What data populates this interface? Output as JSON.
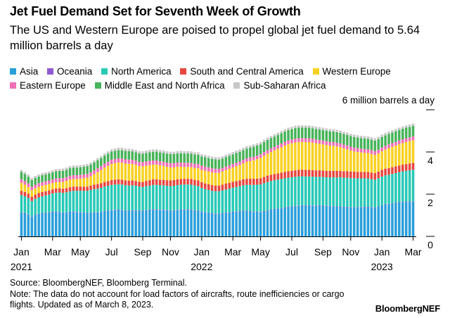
{
  "header": {
    "title": "Jet Fuel Demand Set for Seventh Week of Growth",
    "subtitle": "The US and Western Europe are poised to propel global jet fuel demand to 5.64 million barrels a day"
  },
  "footer": {
    "source": "Source: BloombergNEF, Bloomberg Terminal.",
    "note": "Note: The data do not account for load factors of aircrafts, route inefficiencies or cargo flights. Updated as of March 8, 2023.",
    "brand": "BloombergNEF"
  },
  "colors": {
    "asia": "#2a9fdb",
    "oceania": "#8e5ad4",
    "north_america": "#27c9b5",
    "south_central_america": "#e8473f",
    "western_europe": "#f8d124",
    "eastern_europe": "#ee6fb4",
    "middle_east_north_africa": "#48b35a",
    "sub_saharan_africa": "#c8c8c8"
  },
  "chart_data": {
    "type": "bar",
    "stacked": true,
    "y_unit_label": "6 million barrels a day",
    "ylim": [
      0,
      6
    ],
    "yticks": [
      0,
      2,
      4,
      6
    ],
    "y_tick_labels": [
      "0",
      "2",
      "4",
      ""
    ],
    "y_axis_side": "right",
    "grid": false,
    "legend_position": "top",
    "x_tick_labels": [
      {
        "label": "Jan",
        "year": "2021",
        "week": 0
      },
      {
        "label": "Mar",
        "week": 9
      },
      {
        "label": "May",
        "week": 17
      },
      {
        "label": "Jul",
        "week": 26
      },
      {
        "label": "Sep",
        "week": 35
      },
      {
        "label": "Nov",
        "week": 43
      },
      {
        "label": "Jan",
        "year": "2022",
        "week": 52
      },
      {
        "label": "Mar",
        "week": 61
      },
      {
        "label": "May",
        "week": 69
      },
      {
        "label": "Jul",
        "week": 78
      },
      {
        "label": "Sep",
        "week": 87
      },
      {
        "label": "Nov",
        "week": 95
      },
      {
        "label": "Jan",
        "year": "2023",
        "week": 104
      },
      {
        "label": "Mar",
        "week": 113
      }
    ],
    "x": [
      "2021-01-01",
      "2021-01-08",
      "2021-01-15",
      "2021-01-22",
      "2021-01-29",
      "2021-02-05",
      "2021-02-12",
      "2021-02-19",
      "2021-02-26",
      "2021-03-05",
      "2021-03-12",
      "2021-03-19",
      "2021-03-26",
      "2021-04-02",
      "2021-04-09",
      "2021-04-16",
      "2021-04-23",
      "2021-04-30",
      "2021-05-07",
      "2021-05-14",
      "2021-05-21",
      "2021-05-28",
      "2021-06-04",
      "2021-06-11",
      "2021-06-18",
      "2021-06-25",
      "2021-07-02",
      "2021-07-09",
      "2021-07-16",
      "2021-07-23",
      "2021-07-30",
      "2021-08-06",
      "2021-08-13",
      "2021-08-20",
      "2021-08-27",
      "2021-09-03",
      "2021-09-10",
      "2021-09-17",
      "2021-09-24",
      "2021-10-01",
      "2021-10-08",
      "2021-10-15",
      "2021-10-22",
      "2021-10-29",
      "2021-11-05",
      "2021-11-12",
      "2021-11-19",
      "2021-11-26",
      "2021-12-03",
      "2021-12-10",
      "2021-12-17",
      "2021-12-24",
      "2021-12-31",
      "2022-01-07",
      "2022-01-14",
      "2022-01-21",
      "2022-01-28",
      "2022-02-04",
      "2022-02-11",
      "2022-02-18",
      "2022-02-25",
      "2022-03-04",
      "2022-03-11",
      "2022-03-18",
      "2022-03-25",
      "2022-04-01",
      "2022-04-08",
      "2022-04-15",
      "2022-04-22",
      "2022-04-29",
      "2022-05-06",
      "2022-05-13",
      "2022-05-20",
      "2022-05-27",
      "2022-06-03",
      "2022-06-10",
      "2022-06-17",
      "2022-06-24",
      "2022-07-01",
      "2022-07-08",
      "2022-07-15",
      "2022-07-22",
      "2022-07-29",
      "2022-08-05",
      "2022-08-12",
      "2022-08-19",
      "2022-08-26",
      "2022-09-02",
      "2022-09-09",
      "2022-09-16",
      "2022-09-23",
      "2022-09-30",
      "2022-10-07",
      "2022-10-14",
      "2022-10-21",
      "2022-10-28",
      "2022-11-04",
      "2022-11-11",
      "2022-11-18",
      "2022-11-25",
      "2022-12-02",
      "2022-12-09",
      "2022-12-16",
      "2022-12-23",
      "2022-12-30",
      "2023-01-06",
      "2023-01-13",
      "2023-01-20",
      "2023-01-27",
      "2023-02-03",
      "2023-02-10",
      "2023-02-17",
      "2023-02-24",
      "2023-03-03"
    ],
    "series": [
      {
        "name": "Asia",
        "color_key": "asia",
        "values": [
          1.12,
          1.08,
          1.02,
          0.92,
          1.0,
          1.05,
          1.08,
          1.1,
          1.12,
          1.15,
          1.15,
          1.14,
          1.1,
          1.12,
          1.15,
          1.16,
          1.14,
          1.12,
          1.1,
          1.08,
          1.1,
          1.12,
          1.12,
          1.14,
          1.18,
          1.2,
          1.22,
          1.24,
          1.25,
          1.24,
          1.2,
          1.2,
          1.22,
          1.22,
          1.2,
          1.2,
          1.22,
          1.25,
          1.26,
          1.26,
          1.24,
          1.24,
          1.22,
          1.2,
          1.22,
          1.24,
          1.25,
          1.26,
          1.26,
          1.25,
          1.22,
          1.2,
          1.16,
          1.12,
          1.1,
          1.08,
          1.06,
          1.05,
          1.08,
          1.1,
          1.12,
          1.15,
          1.16,
          1.18,
          1.2,
          1.2,
          1.18,
          1.16,
          1.15,
          1.14,
          1.18,
          1.22,
          1.25,
          1.28,
          1.3,
          1.32,
          1.35,
          1.38,
          1.4,
          1.42,
          1.44,
          1.45,
          1.45,
          1.45,
          1.44,
          1.44,
          1.45,
          1.45,
          1.44,
          1.42,
          1.42,
          1.4,
          1.4,
          1.38,
          1.38,
          1.36,
          1.36,
          1.36,
          1.37,
          1.38,
          1.38,
          1.36,
          1.35,
          1.4,
          1.45,
          1.5,
          1.52,
          1.55,
          1.58,
          1.6,
          1.62,
          1.63,
          1.63,
          1.64
        ]
      },
      {
        "name": "Oceania",
        "color_key": "oceania",
        "values": [
          0.02,
          0.02,
          0.02,
          0.02,
          0.02,
          0.02,
          0.02,
          0.02,
          0.02,
          0.02,
          0.02,
          0.02,
          0.02,
          0.02,
          0.02,
          0.02,
          0.02,
          0.02,
          0.02,
          0.02,
          0.02,
          0.02,
          0.02,
          0.02,
          0.02,
          0.02,
          0.02,
          0.02,
          0.02,
          0.02,
          0.02,
          0.02,
          0.02,
          0.02,
          0.02,
          0.02,
          0.02,
          0.02,
          0.02,
          0.02,
          0.02,
          0.02,
          0.02,
          0.02,
          0.02,
          0.02,
          0.02,
          0.02,
          0.02,
          0.02,
          0.02,
          0.02,
          0.02,
          0.02,
          0.02,
          0.02,
          0.02,
          0.02,
          0.02,
          0.02,
          0.02,
          0.02,
          0.02,
          0.02,
          0.02,
          0.02,
          0.02,
          0.02,
          0.02,
          0.02,
          0.02,
          0.02,
          0.02,
          0.02,
          0.02,
          0.02,
          0.02,
          0.02,
          0.02,
          0.02,
          0.02,
          0.02,
          0.02,
          0.02,
          0.02,
          0.02,
          0.02,
          0.02,
          0.02,
          0.02,
          0.02,
          0.02,
          0.02,
          0.02,
          0.02,
          0.02,
          0.02,
          0.02,
          0.02,
          0.02,
          0.02,
          0.02,
          0.02,
          0.02,
          0.02,
          0.02,
          0.02,
          0.02,
          0.02,
          0.02,
          0.02,
          0.02,
          0.02,
          0.02
        ]
      },
      {
        "name": "North America",
        "color_key": "north_america",
        "values": [
          0.82,
          0.8,
          0.78,
          0.74,
          0.76,
          0.78,
          0.8,
          0.82,
          0.84,
          0.86,
          0.9,
          0.92,
          0.94,
          0.95,
          0.96,
          0.98,
          1.0,
          1.02,
          1.04,
          1.06,
          1.08,
          1.1,
          1.12,
          1.14,
          1.16,
          1.18,
          1.2,
          1.2,
          1.2,
          1.2,
          1.2,
          1.19,
          1.18,
          1.16,
          1.14,
          1.12,
          1.14,
          1.14,
          1.16,
          1.16,
          1.16,
          1.16,
          1.16,
          1.16,
          1.16,
          1.17,
          1.18,
          1.18,
          1.18,
          1.18,
          1.17,
          1.16,
          1.12,
          1.1,
          1.08,
          1.06,
          1.06,
          1.07,
          1.08,
          1.1,
          1.12,
          1.14,
          1.16,
          1.18,
          1.2,
          1.22,
          1.24,
          1.26,
          1.28,
          1.3,
          1.32,
          1.34,
          1.35,
          1.36,
          1.37,
          1.38,
          1.38,
          1.38,
          1.38,
          1.38,
          1.38,
          1.38,
          1.37,
          1.37,
          1.37,
          1.36,
          1.35,
          1.34,
          1.34,
          1.35,
          1.36,
          1.37,
          1.38,
          1.38,
          1.38,
          1.38,
          1.38,
          1.37,
          1.36,
          1.35,
          1.34,
          1.33,
          1.32,
          1.34,
          1.36,
          1.37,
          1.38,
          1.39,
          1.4,
          1.42,
          1.44,
          1.46,
          1.48,
          1.5
        ]
      },
      {
        "name": "South and Central America",
        "color_key": "south_central_america",
        "values": [
          0.2,
          0.2,
          0.2,
          0.2,
          0.2,
          0.2,
          0.2,
          0.2,
          0.2,
          0.2,
          0.2,
          0.2,
          0.2,
          0.2,
          0.2,
          0.2,
          0.2,
          0.2,
          0.2,
          0.2,
          0.2,
          0.21,
          0.22,
          0.22,
          0.22,
          0.22,
          0.23,
          0.23,
          0.23,
          0.23,
          0.23,
          0.23,
          0.23,
          0.23,
          0.23,
          0.24,
          0.25,
          0.25,
          0.26,
          0.26,
          0.26,
          0.26,
          0.26,
          0.27,
          0.27,
          0.27,
          0.27,
          0.27,
          0.27,
          0.27,
          0.27,
          0.27,
          0.27,
          0.27,
          0.27,
          0.27,
          0.27,
          0.27,
          0.27,
          0.28,
          0.28,
          0.28,
          0.28,
          0.28,
          0.28,
          0.29,
          0.29,
          0.29,
          0.29,
          0.3,
          0.3,
          0.3,
          0.3,
          0.3,
          0.3,
          0.3,
          0.31,
          0.31,
          0.31,
          0.31,
          0.31,
          0.31,
          0.31,
          0.31,
          0.31,
          0.31,
          0.31,
          0.31,
          0.31,
          0.31,
          0.31,
          0.31,
          0.31,
          0.31,
          0.31,
          0.31,
          0.31,
          0.31,
          0.31,
          0.31,
          0.31,
          0.31,
          0.31,
          0.31,
          0.32,
          0.32,
          0.32,
          0.32,
          0.32,
          0.32,
          0.32,
          0.32,
          0.32,
          0.32
        ]
      },
      {
        "name": "Western Europe",
        "color_key": "western_europe",
        "values": [
          0.38,
          0.35,
          0.32,
          0.3,
          0.3,
          0.3,
          0.3,
          0.3,
          0.3,
          0.3,
          0.3,
          0.3,
          0.32,
          0.34,
          0.36,
          0.36,
          0.36,
          0.38,
          0.4,
          0.42,
          0.45,
          0.5,
          0.56,
          0.62,
          0.68,
          0.72,
          0.76,
          0.78,
          0.8,
          0.8,
          0.8,
          0.8,
          0.78,
          0.76,
          0.74,
          0.74,
          0.72,
          0.72,
          0.7,
          0.7,
          0.68,
          0.66,
          0.64,
          0.62,
          0.6,
          0.6,
          0.58,
          0.56,
          0.56,
          0.56,
          0.56,
          0.58,
          0.58,
          0.6,
          0.6,
          0.6,
          0.6,
          0.6,
          0.62,
          0.64,
          0.66,
          0.68,
          0.7,
          0.72,
          0.76,
          0.8,
          0.84,
          0.88,
          0.92,
          0.96,
          1.0,
          1.04,
          1.08,
          1.12,
          1.16,
          1.2,
          1.24,
          1.28,
          1.3,
          1.32,
          1.32,
          1.32,
          1.32,
          1.32,
          1.3,
          1.28,
          1.26,
          1.24,
          1.22,
          1.2,
          1.18,
          1.16,
          1.12,
          1.08,
          1.04,
          1.0,
          0.96,
          0.94,
          0.92,
          0.9,
          0.9,
          0.88,
          0.86,
          0.86,
          0.88,
          0.9,
          0.94,
          0.96,
          0.98,
          1.0,
          1.02,
          1.04,
          1.06,
          1.08
        ]
      },
      {
        "name": "Eastern Europe",
        "color_key": "eastern_europe",
        "values": [
          0.17,
          0.17,
          0.17,
          0.17,
          0.17,
          0.17,
          0.17,
          0.17,
          0.17,
          0.17,
          0.18,
          0.18,
          0.18,
          0.18,
          0.18,
          0.18,
          0.18,
          0.18,
          0.18,
          0.18,
          0.18,
          0.18,
          0.19,
          0.19,
          0.19,
          0.2,
          0.2,
          0.2,
          0.2,
          0.2,
          0.2,
          0.2,
          0.2,
          0.2,
          0.2,
          0.2,
          0.2,
          0.2,
          0.2,
          0.2,
          0.2,
          0.2,
          0.2,
          0.2,
          0.2,
          0.2,
          0.2,
          0.2,
          0.2,
          0.2,
          0.2,
          0.2,
          0.2,
          0.2,
          0.2,
          0.2,
          0.2,
          0.19,
          0.18,
          0.17,
          0.17,
          0.17,
          0.17,
          0.17,
          0.17,
          0.17,
          0.17,
          0.17,
          0.17,
          0.17,
          0.17,
          0.17,
          0.17,
          0.17,
          0.18,
          0.18,
          0.18,
          0.18,
          0.18,
          0.18,
          0.18,
          0.18,
          0.18,
          0.18,
          0.18,
          0.18,
          0.18,
          0.18,
          0.18,
          0.18,
          0.18,
          0.18,
          0.18,
          0.18,
          0.18,
          0.18,
          0.18,
          0.18,
          0.18,
          0.18,
          0.18,
          0.18,
          0.18,
          0.18,
          0.18,
          0.18,
          0.18,
          0.18,
          0.18,
          0.18,
          0.18,
          0.18,
          0.18,
          0.18
        ]
      },
      {
        "name": "Middle East and North Africa",
        "color_key": "middle_east_north_africa",
        "values": [
          0.34,
          0.33,
          0.32,
          0.32,
          0.32,
          0.32,
          0.33,
          0.33,
          0.33,
          0.34,
          0.34,
          0.34,
          0.35,
          0.35,
          0.36,
          0.36,
          0.36,
          0.36,
          0.36,
          0.37,
          0.37,
          0.37,
          0.38,
          0.38,
          0.38,
          0.38,
          0.39,
          0.39,
          0.39,
          0.4,
          0.4,
          0.4,
          0.4,
          0.4,
          0.4,
          0.4,
          0.41,
          0.41,
          0.41,
          0.42,
          0.42,
          0.42,
          0.42,
          0.43,
          0.43,
          0.43,
          0.44,
          0.44,
          0.44,
          0.44,
          0.44,
          0.44,
          0.44,
          0.44,
          0.44,
          0.44,
          0.44,
          0.44,
          0.44,
          0.45,
          0.45,
          0.45,
          0.46,
          0.46,
          0.46,
          0.46,
          0.46,
          0.47,
          0.47,
          0.47,
          0.48,
          0.48,
          0.48,
          0.48,
          0.48,
          0.49,
          0.49,
          0.49,
          0.49,
          0.5,
          0.5,
          0.5,
          0.5,
          0.5,
          0.5,
          0.5,
          0.5,
          0.5,
          0.5,
          0.5,
          0.5,
          0.5,
          0.5,
          0.5,
          0.5,
          0.5,
          0.5,
          0.5,
          0.5,
          0.5,
          0.5,
          0.5,
          0.5,
          0.5,
          0.5,
          0.5,
          0.5,
          0.5,
          0.5,
          0.5,
          0.5,
          0.5,
          0.5,
          0.5
        ]
      },
      {
        "name": "Sub-Saharan Africa",
        "color_key": "sub_saharan_africa",
        "values": [
          0.1,
          0.1,
          0.1,
          0.1,
          0.1,
          0.1,
          0.1,
          0.1,
          0.1,
          0.1,
          0.1,
          0.1,
          0.1,
          0.1,
          0.1,
          0.1,
          0.1,
          0.1,
          0.1,
          0.1,
          0.1,
          0.1,
          0.1,
          0.1,
          0.1,
          0.11,
          0.11,
          0.11,
          0.11,
          0.11,
          0.11,
          0.11,
          0.11,
          0.11,
          0.11,
          0.11,
          0.11,
          0.11,
          0.11,
          0.11,
          0.11,
          0.11,
          0.11,
          0.11,
          0.11,
          0.11,
          0.11,
          0.11,
          0.11,
          0.11,
          0.11,
          0.11,
          0.11,
          0.11,
          0.11,
          0.11,
          0.11,
          0.11,
          0.11,
          0.11,
          0.11,
          0.11,
          0.11,
          0.11,
          0.11,
          0.11,
          0.11,
          0.11,
          0.11,
          0.11,
          0.11,
          0.11,
          0.11,
          0.11,
          0.11,
          0.11,
          0.11,
          0.11,
          0.11,
          0.11,
          0.11,
          0.11,
          0.11,
          0.11,
          0.11,
          0.11,
          0.11,
          0.11,
          0.11,
          0.11,
          0.11,
          0.11,
          0.11,
          0.11,
          0.11,
          0.11,
          0.11,
          0.11,
          0.11,
          0.11,
          0.11,
          0.11,
          0.11,
          0.11,
          0.11,
          0.11,
          0.11,
          0.11,
          0.11,
          0.11,
          0.11,
          0.11,
          0.11,
          0.11
        ]
      }
    ]
  }
}
